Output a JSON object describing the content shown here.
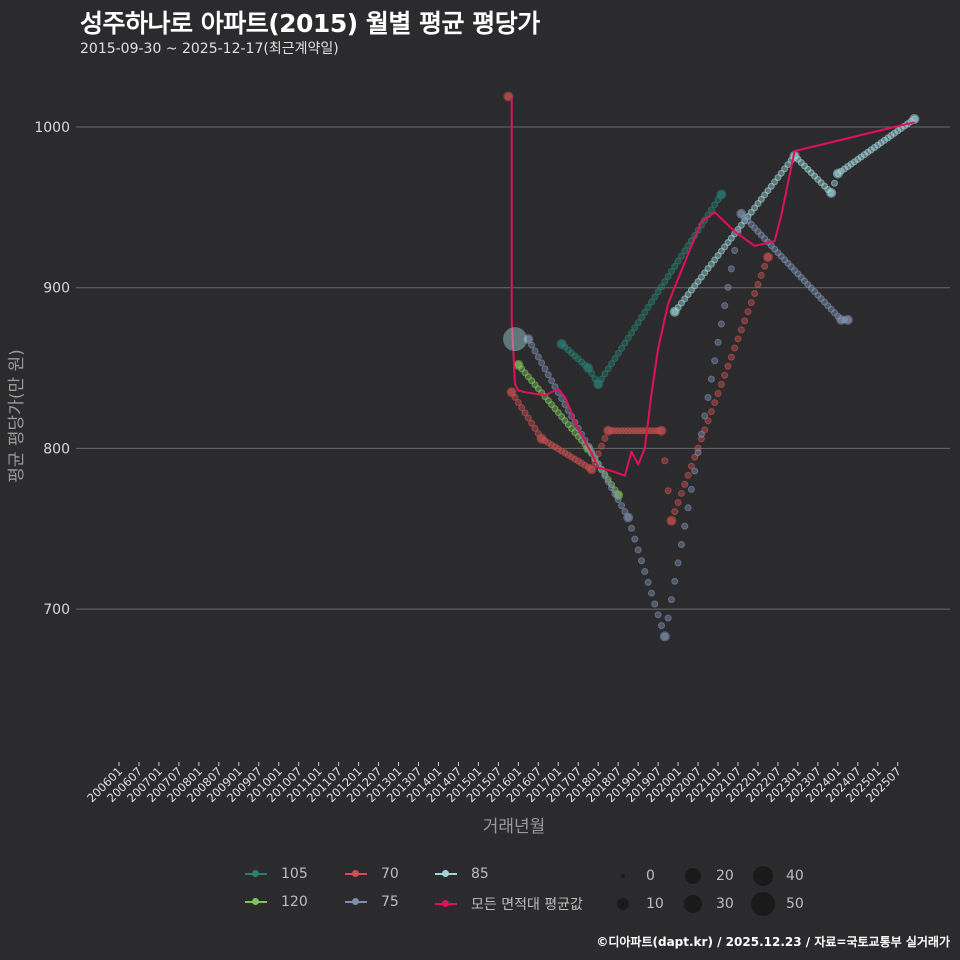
{
  "header": {
    "title": "성주하나로 아파트(2015) 월별 평균 평당가",
    "subtitle": "2015-09-30 ~ 2025-12-17(최근계약일)"
  },
  "caption": "©디아파트(dapt.kr) / 2025.12.23 / 자료=국토교통부 실거래가",
  "chart_data": {
    "type": "scatter",
    "title": "성주하나로 아파트(2015) 월별 평균 평당가",
    "subtitle": "2015-09-30 ~ 2025-12-17(최근계약일)",
    "xlabel": "거래년월",
    "ylabel": "평균 평당가(만 원)",
    "ylim": [
      605,
      1025
    ],
    "yticks": [
      700,
      800,
      900,
      1000
    ],
    "xticks": [
      "200601",
      "200607",
      "200701",
      "200707",
      "200801",
      "200807",
      "200901",
      "200907",
      "201001",
      "201007",
      "201101",
      "201107",
      "201201",
      "201207",
      "201301",
      "201307",
      "201401",
      "201407",
      "201501",
      "201507",
      "201601",
      "201607",
      "201701",
      "201707",
      "201801",
      "201807",
      "201901",
      "201907",
      "202001",
      "202007",
      "202101",
      "202107",
      "202201",
      "202207",
      "202301",
      "202307",
      "202401",
      "202407",
      "202501",
      "202507"
    ],
    "grid": true,
    "legend_position": "bottom",
    "series": [
      {
        "name": "105",
        "color": "#2a7f73",
        "points": [
          [
            "201702",
            865
          ],
          [
            "201710",
            850
          ],
          [
            "201801",
            840
          ],
          [
            "202102",
            958
          ]
        ]
      },
      {
        "name": "70",
        "color": "#c9514f",
        "points": [
          [
            "201510",
            1019
          ],
          [
            "201511",
            835
          ],
          [
            "201608",
            806
          ],
          [
            "201711",
            787
          ],
          [
            "201804",
            811
          ],
          [
            "201908",
            811
          ],
          [
            "201911",
            755
          ],
          [
            "202204",
            919
          ]
        ]
      },
      {
        "name": "85",
        "color": "#9fd4d8",
        "points": [
          [
            "201912",
            885
          ],
          [
            "202212",
            982
          ],
          [
            "202311",
            959
          ],
          [
            "202401",
            971
          ],
          [
            "202512",
            1005
          ]
        ]
      },
      {
        "name": "120",
        "color": "#7fc45a",
        "points": [
          [
            "201601",
            852
          ],
          [
            "201710",
            800
          ],
          [
            "201807",
            771
          ]
        ]
      },
      {
        "name": "75",
        "color": "#7f8fb0",
        "points": [
          [
            "201604",
            868
          ],
          [
            "201810",
            757
          ],
          [
            "201909",
            683
          ],
          [
            "202108",
            946
          ],
          [
            "202402",
            880
          ],
          [
            "202404",
            880
          ]
        ]
      },
      {
        "name": "모든 면적대 평균값",
        "color": "#e0105a",
        "type": "line",
        "points": [
          [
            "201511",
            1018
          ],
          [
            "201511",
            880
          ],
          [
            "201512",
            840
          ],
          [
            "201601",
            836
          ],
          [
            "201603",
            835
          ],
          [
            "201609",
            833
          ],
          [
            "201701",
            837
          ],
          [
            "201703",
            832
          ],
          [
            "201707",
            812
          ],
          [
            "201711",
            797
          ],
          [
            "201801",
            788
          ],
          [
            "201805",
            786
          ],
          [
            "201809",
            783
          ],
          [
            "201811",
            798
          ],
          [
            "201901",
            790
          ],
          [
            "201903",
            800
          ],
          [
            "201905",
            834
          ],
          [
            "201907",
            862
          ],
          [
            "201910",
            890
          ],
          [
            "202004",
            921
          ],
          [
            "202008",
            941
          ],
          [
            "202012",
            947
          ],
          [
            "202106",
            935
          ],
          [
            "202112",
            926
          ],
          [
            "202206",
            929
          ],
          [
            "202208",
            945
          ],
          [
            "202212",
            985
          ],
          [
            "202512",
            1003
          ]
        ]
      }
    ],
    "size_legend": [
      0,
      10,
      20,
      30,
      40,
      50
    ]
  },
  "axes": {
    "y_label": "평균 평당가(만 원)",
    "x_label": "거래년월",
    "y_ticks": [
      "1000",
      "900",
      "800",
      "700"
    ]
  },
  "legend": {
    "series": [
      {
        "label": "105",
        "color": "#2a7f73"
      },
      {
        "label": "70",
        "color": "#c9514f"
      },
      {
        "label": "85",
        "color": "#9fd4d8"
      },
      {
        "label": "120",
        "color": "#7fc45a"
      },
      {
        "label": "75",
        "color": "#7f8fb0"
      },
      {
        "label": "모든 면적대 평균값",
        "color": "#e0105a"
      }
    ],
    "sizes": [
      "0",
      "10",
      "20",
      "30",
      "40",
      "50"
    ]
  }
}
